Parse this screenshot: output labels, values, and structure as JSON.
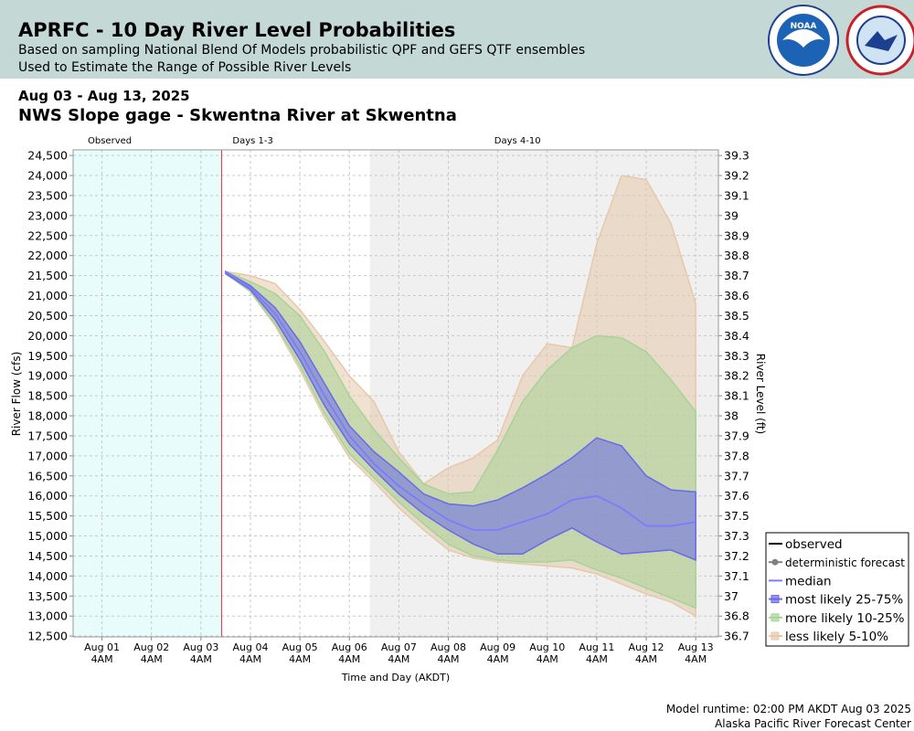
{
  "header": {
    "title": "APRFC - 10 Day River Level Probabilities",
    "subtitle_1": "Based on sampling National Blend Of Models probabilistic QPF and GEFS QTF ensembles",
    "subtitle_2": "Used to Estimate the Range of Possible River Levels"
  },
  "chart_data": {
    "type": "band",
    "date_range": "Aug 03 - Aug 13, 2025",
    "title": "NWS Slope gage - Skwentna River at Skwentna",
    "xlabel": "Time and Day (AKDT)",
    "ylabel": "River Flow (cfs)",
    "y2label": "River Level (ft)",
    "xlim": [
      "2025-07-31T14:00",
      "2025-08-13T15:00"
    ],
    "xticks": [
      {
        "value": "2025-08-01T04:00",
        "label": "Aug 01 4AM"
      },
      {
        "value": "2025-08-02T04:00",
        "label": "Aug 02 4AM"
      },
      {
        "value": "2025-08-03T04:00",
        "label": "Aug 03 4AM"
      },
      {
        "value": "2025-08-04T04:00",
        "label": "Aug 04 4AM"
      },
      {
        "value": "2025-08-05T04:00",
        "label": "Aug 05 4AM"
      },
      {
        "value": "2025-08-06T04:00",
        "label": "Aug 06 4AM"
      },
      {
        "value": "2025-08-07T04:00",
        "label": "Aug 07 4AM"
      },
      {
        "value": "2025-08-08T04:00",
        "label": "Aug 08 4AM"
      },
      {
        "value": "2025-08-09T04:00",
        "label": "Aug 09 4AM"
      },
      {
        "value": "2025-08-10T04:00",
        "label": "Aug 10 4AM"
      },
      {
        "value": "2025-08-11T04:00",
        "label": "Aug 11 4AM"
      },
      {
        "value": "2025-08-12T04:00",
        "label": "Aug 12 4AM"
      },
      {
        "value": "2025-08-13T04:00",
        "label": "Aug 13 4AM"
      }
    ],
    "ylim": [
      12480,
      24640
    ],
    "yticks": [
      {
        "value": 12500,
        "label": "12,500"
      },
      {
        "value": 13000,
        "label": "13,000"
      },
      {
        "value": 13500,
        "label": "13,500"
      },
      {
        "value": 14000,
        "label": "14,000"
      },
      {
        "value": 14500,
        "label": "14,500"
      },
      {
        "value": 15000,
        "label": "15,000"
      },
      {
        "value": 15500,
        "label": "15,500"
      },
      {
        "value": 16000,
        "label": "16,000"
      },
      {
        "value": 16500,
        "label": "16,500"
      },
      {
        "value": 17000,
        "label": "17,000"
      },
      {
        "value": 17500,
        "label": "17,500"
      },
      {
        "value": 18000,
        "label": "18,000"
      },
      {
        "value": 18500,
        "label": "18,500"
      },
      {
        "value": 19000,
        "label": "19,000"
      },
      {
        "value": 19500,
        "label": "19,500"
      },
      {
        "value": 20000,
        "label": "20,000"
      },
      {
        "value": 20500,
        "label": "20,500"
      },
      {
        "value": 21000,
        "label": "21,000"
      },
      {
        "value": 21500,
        "label": "21,500"
      },
      {
        "value": 22000,
        "label": "22,000"
      },
      {
        "value": 22500,
        "label": "22,500"
      },
      {
        "value": 23000,
        "label": "23,000"
      },
      {
        "value": 23500,
        "label": "23,500"
      },
      {
        "value": 24000,
        "label": "24,000"
      },
      {
        "value": 24500,
        "label": "24,500"
      }
    ],
    "y2ticks": [
      36.7,
      36.8,
      37.0,
      37.1,
      37.2,
      37.3,
      37.5,
      37.6,
      37.7,
      37.8,
      37.9,
      38.0,
      38.1,
      38.2,
      38.3,
      38.4,
      38.5,
      38.6,
      38.7,
      38.8,
      38.9,
      39.0,
      39.1,
      39.2,
      39.3
    ],
    "grid": true,
    "regions": [
      {
        "label": "Observed",
        "start": "2025-07-31T14:00",
        "end": "2025-08-03T14:00",
        "color": "#e8fcfc"
      },
      {
        "label": "Days 1-3",
        "start": "2025-08-03T14:00",
        "end": "2025-08-06T14:00",
        "color": "#ffffff"
      },
      {
        "label": "Days 4-10",
        "start": "2025-08-06T14:00",
        "end": "2025-08-13T15:00",
        "color": "#f0f0f0"
      }
    ],
    "forecast_start": "2025-08-03T14:00",
    "x": [
      "2025-08-03T16:00",
      "2025-08-04T04:00",
      "2025-08-04T16:00",
      "2025-08-05T04:00",
      "2025-08-05T16:00",
      "2025-08-06T04:00",
      "2025-08-06T16:00",
      "2025-08-07T04:00",
      "2025-08-07T16:00",
      "2025-08-08T04:00",
      "2025-08-08T16:00",
      "2025-08-09T04:00",
      "2025-08-09T16:00",
      "2025-08-10T04:00",
      "2025-08-10T16:00",
      "2025-08-11T04:00",
      "2025-08-11T16:00",
      "2025-08-12T04:00",
      "2025-08-12T16:00",
      "2025-08-13T04:00"
    ],
    "series": [
      {
        "name": "observed",
        "color": "#000000"
      },
      {
        "name": "deterministic forecast",
        "color": "#808080"
      },
      {
        "name": "median",
        "color": "#7b7bff",
        "values": [
          21600,
          21200,
          20550,
          19600,
          18500,
          17500,
          16800,
          16250,
          15800,
          15400,
          15150,
          15150,
          15350,
          15550,
          15900,
          16000,
          15700,
          15250,
          15250,
          15350
        ]
      },
      {
        "name": "most likely 25-75%",
        "color": "#6a6ae8",
        "lower": [
          21550,
          21150,
          20400,
          19400,
          18250,
          17300,
          16650,
          16050,
          15550,
          15150,
          14800,
          14550,
          14550,
          14900,
          15200,
          14850,
          14550,
          14600,
          14650,
          14400
        ],
        "upper": [
          21600,
          21250,
          20700,
          19850,
          18800,
          17750,
          17100,
          16600,
          16050,
          15800,
          15750,
          15900,
          16200,
          16550,
          16950,
          17450,
          17250,
          16500,
          16150,
          16100
        ]
      },
      {
        "name": "more likely 10-25%",
        "color": "#a6d396",
        "lower": [
          21550,
          21100,
          20300,
          19250,
          18050,
          17050,
          16450,
          15850,
          15300,
          14800,
          14500,
          14400,
          14350,
          14350,
          14400,
          14150,
          13950,
          13700,
          13450,
          13200
        ],
        "upper": [
          21600,
          21350,
          21050,
          20500,
          19600,
          18500,
          17650,
          16950,
          16300,
          16050,
          16100,
          17150,
          18350,
          19150,
          19700,
          20000,
          19950,
          19600,
          18900,
          18100
        ]
      },
      {
        "name": "less likely 5-10%",
        "color": "#e6c9aa",
        "lower": [
          21550,
          21100,
          20250,
          19150,
          17950,
          16950,
          16350,
          15700,
          15150,
          14650,
          14450,
          14350,
          14300,
          14250,
          14200,
          14050,
          13800,
          13550,
          13350,
          13000
        ],
        "upper": [
          21600,
          21500,
          21300,
          20650,
          19850,
          19000,
          18350,
          17100,
          16300,
          16700,
          16950,
          17400,
          19000,
          19800,
          19700,
          22300,
          24000,
          23900,
          22800,
          20800
        ]
      }
    ],
    "legend": "lower right"
  },
  "footer": {
    "runtime": "Model runtime: 02:00 PM AKDT Aug 03 2025",
    "center": "Alaska Pacific River Forecast Center"
  }
}
